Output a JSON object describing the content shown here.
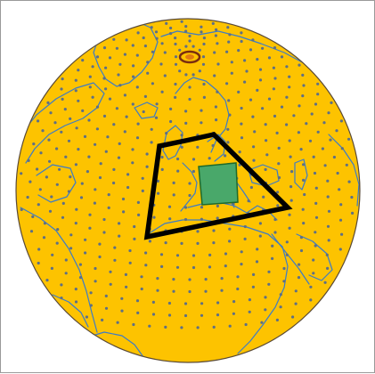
{
  "map": {
    "projection": "orthographic",
    "colors": {
      "background": "#ffffff",
      "border": "#9a9a9a",
      "globe_fill": "#fdc300",
      "globe_outline": "#5a4a36",
      "coastline": "#3c7bc8",
      "grid_points": "#5e6f85",
      "outer_domain_outline": "#000000",
      "inner_domain_fill": "#49a86a",
      "inner_domain_outline": "#1f6a2a",
      "pole_marker_outer": "#7a2d10",
      "pole_marker_inner": "#e07a10"
    },
    "features": [
      "globe",
      "coastlines",
      "grid-point-rings",
      "outer-domain-box",
      "inner-domain-box",
      "pole-marker"
    ]
  }
}
